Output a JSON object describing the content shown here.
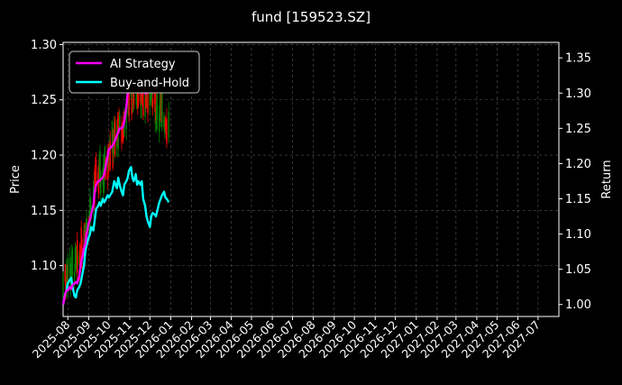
{
  "chart_data": {
    "type": "line",
    "title": "fund [159523.SZ]",
    "ylabel_left": "Price",
    "ylabel_right": "Return",
    "ylim_left": [
      1.054,
      1.302
    ],
    "ylim_right": [
      0.983,
      1.372
    ],
    "xlim": [
      "2025-07-25",
      "2027-08-01"
    ],
    "x_ticks": [
      "2025-08",
      "2025-09",
      "2025-10",
      "2025-11",
      "2025-12",
      "2026-01",
      "2026-02",
      "2026-03",
      "2026-04",
      "2026-05",
      "2026-06",
      "2026-07",
      "2026-08",
      "2026-09",
      "2026-10",
      "2026-11",
      "2026-12",
      "2027-01",
      "2027-02",
      "2027-03",
      "2027-04",
      "2027-05",
      "2027-06",
      "2027-07"
    ],
    "y_ticks_left": [
      "1.10",
      "1.15",
      "1.20",
      "1.25",
      "1.30"
    ],
    "y_ticks_right": [
      "1.00",
      "1.05",
      "1.10",
      "1.15",
      "1.20",
      "1.25",
      "1.30",
      "1.35"
    ],
    "grid": true,
    "legend": "top-left",
    "colors": {
      "background": "#000000",
      "ai_strategy": "#ff00ff",
      "buy_and_hold": "#00ffff",
      "candle_up": "#ff0000",
      "candle_down": "#008000",
      "grid": "#555555"
    },
    "series": [
      {
        "name": "AI Strategy",
        "axis": "right",
        "x": [
          "2025-07-25",
          "2025-07-28",
          "2025-07-30",
          "2025-08-01",
          "2025-08-04",
          "2025-08-06",
          "2025-08-08",
          "2025-08-11",
          "2025-08-13",
          "2025-08-15",
          "2025-08-18",
          "2025-08-20",
          "2025-08-22",
          "2025-08-25",
          "2025-08-27",
          "2025-08-29",
          "2025-09-01",
          "2025-09-03",
          "2025-09-05",
          "2025-09-08",
          "2025-09-10",
          "2025-09-12",
          "2025-09-15",
          "2025-09-17",
          "2025-09-19",
          "2025-09-22",
          "2025-09-24",
          "2025-09-26",
          "2025-09-29",
          "2025-10-01",
          "2025-10-06",
          "2025-10-09",
          "2025-10-13",
          "2025-10-15",
          "2025-10-17",
          "2025-10-20",
          "2025-10-22",
          "2025-10-24",
          "2025-10-27",
          "2025-10-29",
          "2025-10-31",
          "2025-11-03",
          "2025-11-05",
          "2025-11-07",
          "2025-11-10",
          "2025-11-12",
          "2025-11-14",
          "2025-11-17",
          "2025-11-19",
          "2025-11-21",
          "2025-11-24",
          "2025-11-26",
          "2025-11-28",
          "2025-12-01"
        ],
        "values": [
          1.0,
          1.015,
          1.02,
          1.02,
          1.025,
          1.022,
          1.028,
          1.03,
          1.032,
          1.03,
          1.04,
          1.055,
          1.065,
          1.08,
          1.085,
          1.1,
          1.115,
          1.12,
          1.13,
          1.14,
          1.16,
          1.17,
          1.175,
          1.175,
          1.178,
          1.18,
          1.185,
          1.195,
          1.21,
          1.22,
          1.225,
          1.23,
          1.24,
          1.245,
          1.25,
          1.25,
          1.252,
          1.26,
          1.28,
          1.3,
          1.31,
          1.305,
          1.305,
          1.31,
          1.33,
          1.32,
          1.325,
          1.31,
          1.3,
          1.305,
          1.3,
          1.3,
          1.31,
          1.315
        ]
      },
      {
        "name": "Buy-and-Hold",
        "axis": "right",
        "x": [
          "2025-07-25",
          "2025-07-28",
          "2025-07-30",
          "2025-08-01",
          "2025-08-04",
          "2025-08-06",
          "2025-08-08",
          "2025-08-11",
          "2025-08-13",
          "2025-08-15",
          "2025-08-18",
          "2025-08-20",
          "2025-08-22",
          "2025-08-25",
          "2025-08-27",
          "2025-08-29",
          "2025-09-01",
          "2025-09-03",
          "2025-09-05",
          "2025-09-08",
          "2025-09-10",
          "2025-09-12",
          "2025-09-15",
          "2025-09-17",
          "2025-09-19",
          "2025-09-22",
          "2025-09-24",
          "2025-09-26",
          "2025-09-29",
          "2025-10-01",
          "2025-10-06",
          "2025-10-09",
          "2025-10-13",
          "2025-10-15",
          "2025-10-17",
          "2025-10-20",
          "2025-10-22",
          "2025-10-24",
          "2025-10-27",
          "2025-10-29",
          "2025-10-31",
          "2025-11-03",
          "2025-11-05",
          "2025-11-07",
          "2025-11-10",
          "2025-11-12",
          "2025-11-14",
          "2025-11-17",
          "2025-11-19",
          "2025-11-21",
          "2025-11-24",
          "2025-11-26",
          "2025-11-28",
          "2025-12-01",
          "2025-12-03",
          "2025-12-05",
          "2025-12-08",
          "2025-12-10",
          "2025-12-12",
          "2025-12-15",
          "2025-12-17",
          "2025-12-19",
          "2025-12-22",
          "2025-12-24",
          "2025-12-26",
          "2025-12-29"
        ],
        "values": [
          1.0,
          1.015,
          1.02,
          1.03,
          1.035,
          1.038,
          1.025,
          1.012,
          1.01,
          1.02,
          1.025,
          1.03,
          1.04,
          1.055,
          1.075,
          1.085,
          1.095,
          1.1,
          1.11,
          1.105,
          1.12,
          1.135,
          1.14,
          1.145,
          1.14,
          1.15,
          1.145,
          1.148,
          1.155,
          1.152,
          1.16,
          1.175,
          1.165,
          1.18,
          1.17,
          1.16,
          1.155,
          1.17,
          1.175,
          1.18,
          1.19,
          1.195,
          1.18,
          1.175,
          1.185,
          1.17,
          1.175,
          1.17,
          1.175,
          1.15,
          1.14,
          1.125,
          1.118,
          1.11,
          1.125,
          1.13,
          1.128,
          1.125,
          1.133,
          1.145,
          1.15,
          1.155,
          1.16,
          1.152,
          1.15,
          1.145
        ]
      }
    ]
  },
  "legend_labels": {
    "ai_strategy": "AI Strategy",
    "buy_and_hold": "Buy-and-Hold"
  }
}
